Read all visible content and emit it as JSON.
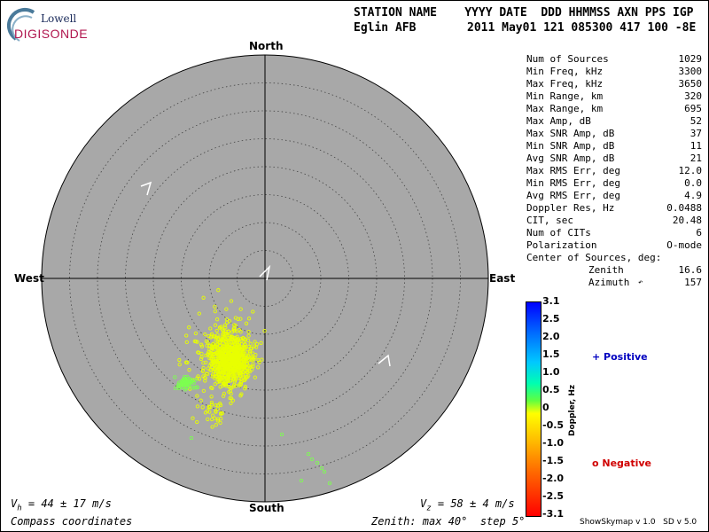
{
  "logo": {
    "lowell": "Lowell",
    "digisonde": "DIGISONDE"
  },
  "header": {
    "line1": "STATION NAME    YYYY DATE  DDD HHMMSS AXN PPS IGP",
    "station": "Eglin AFB",
    "line2": "2011 May01 121 085300 417 100 -8E"
  },
  "directions": {
    "north": "North",
    "south": "South",
    "east": "East",
    "west": "West"
  },
  "stats": {
    "rows": [
      {
        "label": "Num of Sources",
        "value": "1029"
      },
      {
        "label": "Min Freq, kHz",
        "value": "3300"
      },
      {
        "label": "Max Freq, kHz",
        "value": "3650"
      },
      {
        "label": "Min Range, km",
        "value": "320"
      },
      {
        "label": "Max Range, km",
        "value": "695"
      },
      {
        "label": "Max Amp, dB",
        "value": "52"
      },
      {
        "label": "Max SNR Amp, dB",
        "value": "37"
      },
      {
        "label": "Min SNR Amp, dB",
        "value": "11"
      },
      {
        "label": "Avg SNR Amp, dB",
        "value": "21"
      },
      {
        "label": "Max RMS Err, deg",
        "value": "12.0"
      },
      {
        "label": "Min RMS Err, deg",
        "value": "0.0"
      },
      {
        "label": "Avg RMS Err, deg",
        "value": "4.9"
      },
      {
        "label": "Doppler Res, Hz",
        "value": "0.0488"
      },
      {
        "label": "CIT, sec",
        "value": "20.48"
      },
      {
        "label": "Num of CITs",
        "value": "6"
      },
      {
        "label": "Polarization",
        "value": "O-mode"
      }
    ],
    "center_label": "Center of Sources, deg:",
    "zenith_label": "Zenith",
    "zenith_value": "16.6",
    "azimuth_label": "Azimuth",
    "azimuth_value": "157"
  },
  "colorbar": {
    "ticks": [
      "3.1",
      "2.5",
      "2.0",
      "1.5",
      "1.0",
      "0.5",
      "0",
      "-0.5",
      "-1.0",
      "-1.5",
      "-2.0",
      "-2.5",
      "-3.1"
    ],
    "label": "Doppler, Hz",
    "positive": "+ Positive",
    "negative": "o Negative"
  },
  "footer": {
    "vh": "V",
    "vh_sub": "h",
    "vh_rest": " = 44 ± 17 m/s",
    "vz": "V",
    "vz_sub": "z",
    "vz_rest": " = 58 ± 4 m/s",
    "compass": "Compass coordinates",
    "zenith": "Zenith: max 40°  step 5°",
    "version": "ShowSkymap v 1.0   SD v 5.0"
  },
  "colors": {
    "disk": "#a8a8a8",
    "point_main": "#e8ff00",
    "point_green": "#7dff50"
  }
}
